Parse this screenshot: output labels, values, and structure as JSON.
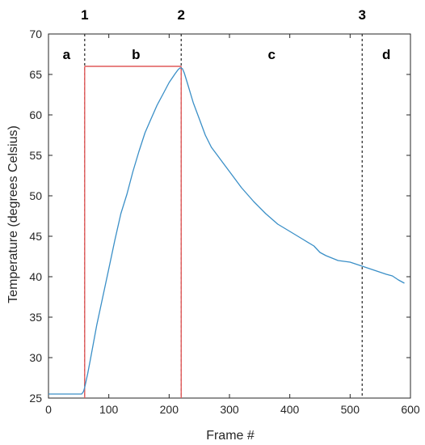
{
  "chart_data": {
    "type": "line",
    "xlabel": "Frame #",
    "ylabel": "Temperature (degrees Celsius)",
    "xlim": [
      0,
      600
    ],
    "ylim": [
      25,
      70
    ],
    "xticks": [
      0,
      100,
      200,
      300,
      400,
      500,
      600
    ],
    "yticks": [
      25,
      30,
      35,
      40,
      45,
      50,
      55,
      60,
      65,
      70
    ],
    "grid": false,
    "line_color": "#3a8fc7",
    "marker_color": "#e05a5a",
    "series": [
      {
        "x": [
          0,
          20,
          40,
          55,
          58,
          60,
          62,
          65,
          70,
          80,
          90,
          100,
          110,
          120,
          130,
          140,
          150,
          160,
          170,
          180,
          190,
          200,
          210,
          215,
          218,
          220,
          222,
          225,
          230,
          240,
          250,
          260,
          270,
          280,
          290,
          300,
          320,
          340,
          360,
          380,
          400,
          420,
          440,
          450,
          460,
          480,
          500,
          520,
          540,
          560,
          570,
          580,
          590
        ],
        "y": [
          25.5,
          25.5,
          25.5,
          25.5,
          25.8,
          26.3,
          27.0,
          28.0,
          30.0,
          34.0,
          37.5,
          41.0,
          44.5,
          47.8,
          50.2,
          53.0,
          55.5,
          57.8,
          59.5,
          61.2,
          62.6,
          64.0,
          65.1,
          65.6,
          65.8,
          65.8,
          65.7,
          65.2,
          64.0,
          61.5,
          59.5,
          57.5,
          56.0,
          55.0,
          54.0,
          53.0,
          51.0,
          49.3,
          47.8,
          46.5,
          45.6,
          44.7,
          43.8,
          43.0,
          42.6,
          42.0,
          41.8,
          41.3,
          40.8,
          40.3,
          40.1,
          39.6,
          39.2
        ]
      }
    ],
    "phase_markers": [
      {
        "label": "1",
        "x": 60
      },
      {
        "label": "2",
        "x": 220
      },
      {
        "label": "3",
        "x": 520
      }
    ],
    "regions": [
      {
        "label": "a",
        "x": 30
      },
      {
        "label": "b",
        "x": 145
      },
      {
        "label": "c",
        "x": 370
      },
      {
        "label": "d",
        "x": 560
      }
    ],
    "bracket": {
      "x_start": 60,
      "x_end": 220,
      "y_top": 66
    }
  }
}
